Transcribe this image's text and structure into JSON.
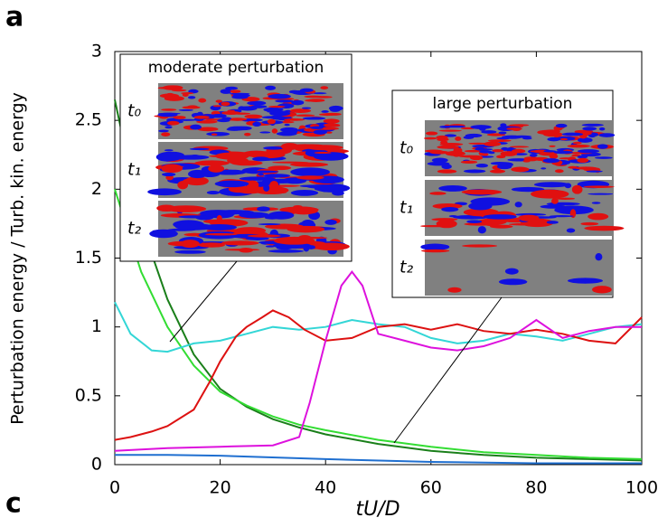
{
  "panel_labels": [
    "a",
    "c"
  ],
  "insets": [
    {
      "title": "moderate perturbation",
      "labels": [
        "t₀",
        "t₁",
        "t₂"
      ]
    },
    {
      "title": "large perturbation",
      "labels": [
        "t₀",
        "t₁",
        "t₂"
      ]
    }
  ],
  "chart_data": {
    "type": "line",
    "y_label": "Perturbation energy / Turb. kin. energy",
    "x_label": "tU/D",
    "xlim": [
      0,
      100
    ],
    "xticks": [
      0,
      20,
      40,
      60,
      80,
      100
    ],
    "ylim": [
      0,
      3
    ],
    "yticks": [
      0,
      0.5,
      1,
      1.5,
      2,
      2.5,
      3
    ],
    "series": [
      {
        "color": "#1a7f1a",
        "x": [
          0,
          5,
          10,
          15,
          20,
          25,
          30,
          35,
          40,
          50,
          60,
          70,
          80,
          90,
          100
        ],
        "values": [
          2.65,
          1.75,
          1.2,
          0.8,
          0.55,
          0.42,
          0.33,
          0.27,
          0.22,
          0.15,
          0.1,
          0.07,
          0.05,
          0.04,
          0.03
        ]
      },
      {
        "color": "#33dd33",
        "x": [
          0,
          5,
          10,
          15,
          20,
          25,
          30,
          35,
          40,
          50,
          60,
          70,
          80,
          90,
          100
        ],
        "values": [
          2.0,
          1.4,
          1.0,
          0.72,
          0.53,
          0.43,
          0.35,
          0.29,
          0.25,
          0.18,
          0.13,
          0.09,
          0.07,
          0.05,
          0.04
        ]
      },
      {
        "color": "#33d6d6",
        "x": [
          0,
          3,
          7,
          10,
          15,
          20,
          25,
          30,
          35,
          40,
          45,
          50,
          55,
          60,
          65,
          70,
          75,
          80,
          85,
          90,
          95,
          100
        ],
        "values": [
          1.18,
          0.95,
          0.83,
          0.82,
          0.88,
          0.9,
          0.95,
          1.0,
          0.98,
          1.0,
          1.05,
          1.02,
          1.0,
          0.92,
          0.88,
          0.9,
          0.95,
          0.93,
          0.9,
          0.95,
          1.0,
          1.02
        ]
      },
      {
        "color": "#dd1111",
        "x": [
          0,
          3,
          7,
          10,
          15,
          18,
          20,
          23,
          25,
          28,
          30,
          33,
          36,
          40,
          45,
          50,
          55,
          60,
          65,
          70,
          75,
          80,
          85,
          90,
          95,
          100
        ],
        "values": [
          0.18,
          0.2,
          0.24,
          0.28,
          0.4,
          0.6,
          0.75,
          0.93,
          1.0,
          1.07,
          1.12,
          1.07,
          0.98,
          0.9,
          0.92,
          1.0,
          1.02,
          0.98,
          1.02,
          0.97,
          0.95,
          0.98,
          0.95,
          0.9,
          0.88,
          1.07
        ]
      },
      {
        "color": "#dd11dd",
        "x": [
          0,
          10,
          20,
          30,
          35,
          37,
          40,
          43,
          45,
          47,
          50,
          55,
          60,
          65,
          70,
          75,
          80,
          85,
          90,
          95,
          100
        ],
        "values": [
          0.1,
          0.12,
          0.13,
          0.14,
          0.2,
          0.45,
          0.9,
          1.3,
          1.4,
          1.3,
          0.95,
          0.9,
          0.85,
          0.83,
          0.86,
          0.92,
          1.05,
          0.92,
          0.97,
          1.0,
          1.0
        ]
      },
      {
        "color": "#1f6fd0",
        "x": [
          0,
          10,
          20,
          40,
          60,
          80,
          100
        ],
        "values": [
          0.07,
          0.07,
          0.065,
          0.04,
          0.02,
          0.01,
          0.01
        ]
      }
    ]
  }
}
